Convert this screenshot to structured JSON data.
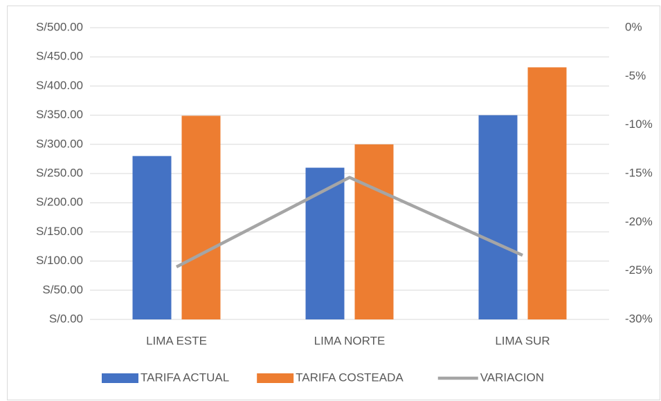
{
  "chart_data": {
    "type": "bar",
    "categories": [
      "LIMA ESTE",
      "LIMA NORTE",
      "LIMA SUR"
    ],
    "series": [
      {
        "name": "TARIFA ACTUAL",
        "color": "#4472c4",
        "values": [
          280,
          260,
          350
        ]
      },
      {
        "name": "TARIFA COSTEADA",
        "color": "#ed7d31",
        "values": [
          349,
          300,
          432
        ]
      },
      {
        "name": "VARIACION",
        "type": "line",
        "axis": "y2",
        "color": "#a5a5a5",
        "values": [
          -24.6,
          -15.4,
          -23.4
        ]
      }
    ],
    "ylim": [
      0,
      500
    ],
    "yticks": [
      {
        "value": 0,
        "label": "S/0.00"
      },
      {
        "value": 50,
        "label": "S/50.00"
      },
      {
        "value": 100,
        "label": "S/100.00"
      },
      {
        "value": 150,
        "label": "S/150.00"
      },
      {
        "value": 200,
        "label": "S/200.00"
      },
      {
        "value": 250,
        "label": "S/250.00"
      },
      {
        "value": 300,
        "label": "S/300.00"
      },
      {
        "value": 350,
        "label": "S/350.00"
      },
      {
        "value": 400,
        "label": "S/400.00"
      },
      {
        "value": 450,
        "label": "S/450.00"
      },
      {
        "value": 500,
        "label": "S/500.00"
      }
    ],
    "y2lim": [
      -30,
      0
    ],
    "y2ticks": [
      {
        "value": 0,
        "label": "0%"
      },
      {
        "value": -5,
        "label": "-5%"
      },
      {
        "value": -10,
        "label": "-10%"
      },
      {
        "value": -15,
        "label": "-15%"
      },
      {
        "value": -20,
        "label": "-20%"
      },
      {
        "value": -25,
        "label": "-25%"
      },
      {
        "value": -30,
        "label": "-30%"
      }
    ],
    "grid": true,
    "legend": "bottom"
  }
}
